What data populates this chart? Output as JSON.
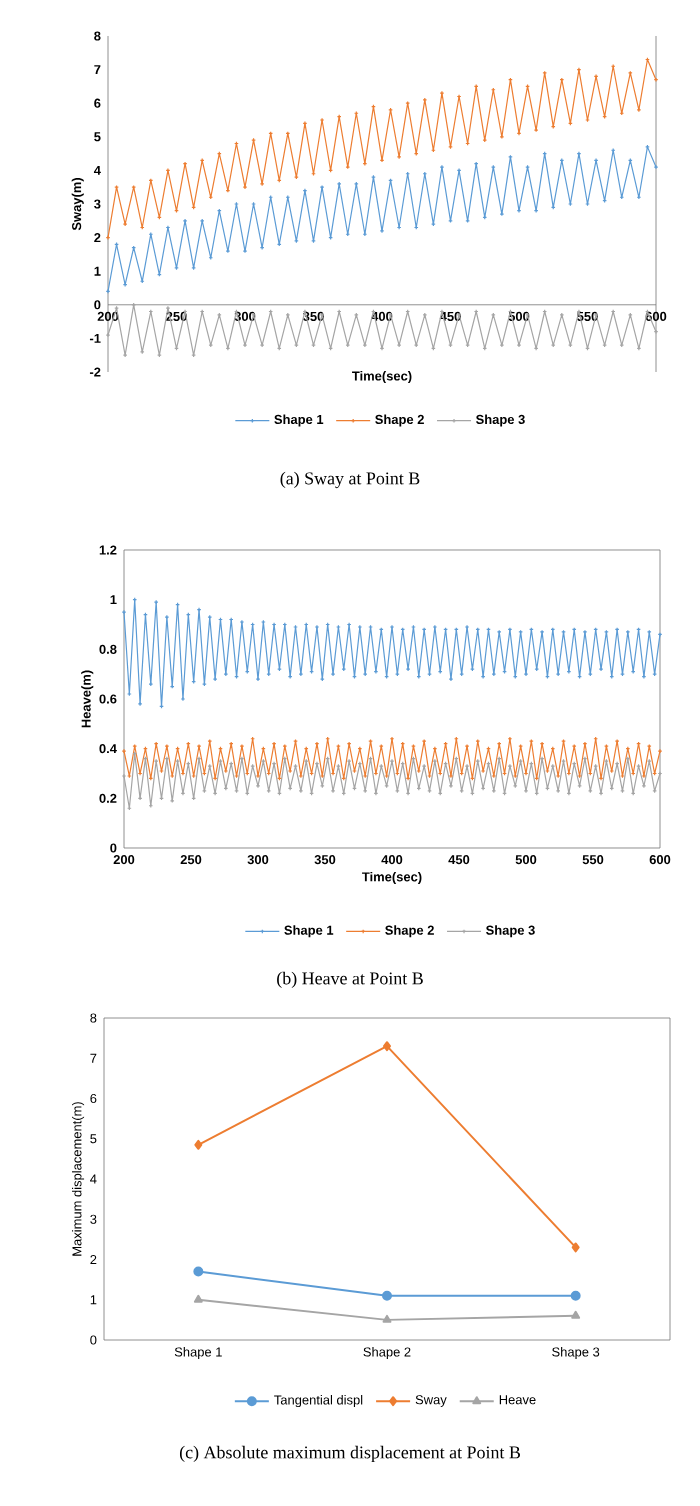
{
  "chart_data": [
    {
      "type": "line",
      "title": "(a) Sway at Point B",
      "xlabel": "Time(sec)",
      "ylabel": "Sway(m)",
      "legend": "bottom",
      "marker": "cross",
      "xlim": [
        200,
        600
      ],
      "xticks": [
        200,
        250,
        300,
        350,
        400,
        450,
        500,
        550,
        600
      ],
      "ylim": [
        -2,
        8
      ],
      "yticks": [
        -2,
        -1,
        0,
        1,
        2,
        3,
        4,
        5,
        6,
        7,
        8
      ],
      "x": [
        200,
        206.25,
        212.5,
        218.75,
        225,
        231.25,
        237.5,
        243.75,
        250,
        256.25,
        262.5,
        268.75,
        275,
        281.25,
        287.5,
        293.75,
        300,
        306.25,
        312.5,
        318.75,
        325,
        331.25,
        337.5,
        343.75,
        350,
        356.25,
        362.5,
        368.75,
        375,
        381.25,
        387.5,
        393.75,
        400,
        406.25,
        412.5,
        418.75,
        425,
        431.25,
        437.5,
        443.75,
        450,
        456.25,
        462.5,
        468.75,
        475,
        481.25,
        487.5,
        493.75,
        500,
        506.25,
        512.5,
        518.75,
        525,
        531.25,
        537.5,
        543.75,
        550,
        556.25,
        562.5,
        568.75,
        575,
        581.25,
        587.5,
        593.75,
        600
      ],
      "series": [
        {
          "name": "Shape 1",
          "color": "#5b9bd5",
          "values": [
            0.4,
            1.8,
            0.6,
            1.7,
            0.7,
            2.1,
            0.9,
            2.3,
            1.1,
            2.5,
            1.1,
            2.5,
            1.4,
            2.8,
            1.6,
            3.0,
            1.6,
            3.0,
            1.7,
            3.2,
            1.8,
            3.2,
            1.9,
            3.4,
            1.9,
            3.5,
            2.0,
            3.6,
            2.1,
            3.6,
            2.1,
            3.8,
            2.2,
            3.7,
            2.3,
            3.9,
            2.3,
            3.9,
            2.4,
            4.1,
            2.5,
            4.0,
            2.5,
            4.2,
            2.6,
            4.1,
            2.7,
            4.4,
            2.8,
            4.1,
            2.8,
            4.5,
            2.9,
            4.3,
            3.0,
            4.5,
            3.0,
            4.3,
            3.1,
            4.6,
            3.2,
            4.3,
            3.2,
            4.7,
            4.1
          ]
        },
        {
          "name": "Shape 2",
          "color": "#ed7d31",
          "values": [
            2.0,
            3.5,
            2.4,
            3.5,
            2.3,
            3.7,
            2.6,
            4.0,
            2.8,
            4.2,
            2.9,
            4.3,
            3.2,
            4.5,
            3.4,
            4.8,
            3.5,
            4.9,
            3.6,
            5.1,
            3.7,
            5.1,
            3.8,
            5.4,
            3.9,
            5.5,
            4.0,
            5.6,
            4.1,
            5.7,
            4.2,
            5.9,
            4.3,
            5.8,
            4.4,
            6.0,
            4.5,
            6.1,
            4.6,
            6.3,
            4.7,
            6.2,
            4.8,
            6.5,
            4.9,
            6.4,
            5.0,
            6.7,
            5.1,
            6.5,
            5.2,
            6.9,
            5.3,
            6.7,
            5.4,
            7.0,
            5.5,
            6.8,
            5.6,
            7.1,
            5.7,
            6.9,
            5.8,
            7.3,
            6.7
          ]
        },
        {
          "name": "Shape 3",
          "color": "#a5a5a5",
          "values": [
            -0.9,
            -0.1,
            -1.5,
            0.0,
            -1.4,
            -0.2,
            -1.5,
            -0.1,
            -1.3,
            -0.2,
            -1.5,
            -0.2,
            -1.2,
            -0.3,
            -1.3,
            -0.2,
            -1.2,
            -0.3,
            -1.2,
            -0.2,
            -1.3,
            -0.3,
            -1.2,
            -0.2,
            -1.2,
            -0.3,
            -1.3,
            -0.2,
            -1.2,
            -0.3,
            -1.2,
            -0.2,
            -1.3,
            -0.3,
            -1.2,
            -0.2,
            -1.2,
            -0.3,
            -1.3,
            -0.2,
            -1.2,
            -0.3,
            -1.2,
            -0.2,
            -1.3,
            -0.3,
            -1.2,
            -0.2,
            -1.2,
            -0.3,
            -1.3,
            -0.2,
            -1.2,
            -0.3,
            -1.2,
            -0.2,
            -1.3,
            -0.3,
            -1.2,
            -0.2,
            -1.2,
            -0.3,
            -1.3,
            -0.2,
            -0.8
          ]
        }
      ]
    },
    {
      "type": "line",
      "title": "(b) Heave at Point B",
      "xlabel": "Time(sec)",
      "ylabel": "Heave(m)",
      "legend": "bottom",
      "marker": "cross",
      "xlim": [
        200,
        600
      ],
      "xticks": [
        200,
        250,
        300,
        350,
        400,
        450,
        500,
        550,
        600
      ],
      "ylim": [
        0,
        1.2
      ],
      "yticks": [
        0,
        0.2,
        0.4,
        0.6,
        0.8,
        1,
        1.2
      ],
      "x": [
        200,
        204,
        208,
        212,
        216,
        220,
        224,
        228,
        232,
        236,
        240,
        244,
        248,
        252,
        256,
        260,
        264,
        268,
        272,
        276,
        280,
        284,
        288,
        292,
        296,
        300,
        304,
        308,
        312,
        316,
        320,
        324,
        328,
        332,
        336,
        340,
        344,
        348,
        352,
        356,
        360,
        364,
        368,
        372,
        376,
        380,
        384,
        388,
        392,
        396,
        400,
        404,
        408,
        412,
        416,
        420,
        424,
        428,
        432,
        436,
        440,
        444,
        448,
        452,
        456,
        460,
        464,
        468,
        472,
        476,
        480,
        484,
        488,
        492,
        496,
        500,
        504,
        508,
        512,
        516,
        520,
        524,
        528,
        532,
        536,
        540,
        544,
        548,
        552,
        556,
        560,
        564,
        568,
        572,
        576,
        580,
        584,
        588,
        592,
        596,
        600
      ],
      "series": [
        {
          "name": "Shape 1",
          "color": "#5b9bd5",
          "values": [
            0.95,
            0.62,
            1.0,
            0.58,
            0.94,
            0.66,
            0.99,
            0.57,
            0.93,
            0.65,
            0.98,
            0.6,
            0.94,
            0.67,
            0.96,
            0.66,
            0.93,
            0.68,
            0.92,
            0.7,
            0.92,
            0.69,
            0.91,
            0.71,
            0.9,
            0.68,
            0.91,
            0.7,
            0.9,
            0.72,
            0.9,
            0.69,
            0.89,
            0.7,
            0.9,
            0.71,
            0.89,
            0.68,
            0.9,
            0.7,
            0.89,
            0.72,
            0.9,
            0.69,
            0.89,
            0.7,
            0.89,
            0.71,
            0.88,
            0.69,
            0.89,
            0.7,
            0.88,
            0.72,
            0.89,
            0.69,
            0.88,
            0.7,
            0.89,
            0.71,
            0.88,
            0.68,
            0.88,
            0.7,
            0.89,
            0.72,
            0.88,
            0.69,
            0.88,
            0.7,
            0.87,
            0.71,
            0.88,
            0.69,
            0.87,
            0.7,
            0.88,
            0.72,
            0.87,
            0.69,
            0.88,
            0.7,
            0.87,
            0.71,
            0.88,
            0.69,
            0.87,
            0.7,
            0.88,
            0.72,
            0.87,
            0.69,
            0.88,
            0.7,
            0.87,
            0.71,
            0.88,
            0.69,
            0.87,
            0.7,
            0.86
          ]
        },
        {
          "name": "Shape 2",
          "color": "#ed7d31",
          "values": [
            0.39,
            0.29,
            0.41,
            0.3,
            0.4,
            0.28,
            0.42,
            0.31,
            0.41,
            0.29,
            0.4,
            0.3,
            0.42,
            0.29,
            0.41,
            0.3,
            0.43,
            0.28,
            0.4,
            0.31,
            0.42,
            0.29,
            0.41,
            0.3,
            0.44,
            0.29,
            0.4,
            0.3,
            0.42,
            0.28,
            0.41,
            0.31,
            0.43,
            0.29,
            0.4,
            0.3,
            0.42,
            0.29,
            0.44,
            0.3,
            0.41,
            0.28,
            0.42,
            0.31,
            0.4,
            0.29,
            0.43,
            0.3,
            0.41,
            0.29,
            0.44,
            0.3,
            0.42,
            0.28,
            0.41,
            0.31,
            0.43,
            0.29,
            0.4,
            0.3,
            0.42,
            0.29,
            0.44,
            0.3,
            0.41,
            0.28,
            0.43,
            0.31,
            0.4,
            0.29,
            0.42,
            0.3,
            0.44,
            0.29,
            0.41,
            0.3,
            0.43,
            0.28,
            0.42,
            0.31,
            0.4,
            0.29,
            0.43,
            0.3,
            0.41,
            0.29,
            0.42,
            0.3,
            0.44,
            0.28,
            0.41,
            0.31,
            0.43,
            0.29,
            0.4,
            0.3,
            0.42,
            0.29,
            0.41,
            0.3,
            0.39
          ]
        },
        {
          "name": "Shape 3",
          "color": "#a5a5a5",
          "values": [
            0.29,
            0.16,
            0.38,
            0.2,
            0.36,
            0.17,
            0.35,
            0.2,
            0.36,
            0.19,
            0.35,
            0.22,
            0.34,
            0.2,
            0.36,
            0.23,
            0.33,
            0.22,
            0.35,
            0.24,
            0.34,
            0.23,
            0.36,
            0.22,
            0.33,
            0.25,
            0.35,
            0.23,
            0.34,
            0.22,
            0.36,
            0.24,
            0.33,
            0.23,
            0.35,
            0.22,
            0.34,
            0.25,
            0.36,
            0.23,
            0.33,
            0.22,
            0.35,
            0.24,
            0.34,
            0.23,
            0.36,
            0.22,
            0.33,
            0.25,
            0.35,
            0.23,
            0.34,
            0.22,
            0.36,
            0.24,
            0.33,
            0.23,
            0.35,
            0.22,
            0.34,
            0.25,
            0.36,
            0.23,
            0.33,
            0.22,
            0.35,
            0.24,
            0.34,
            0.23,
            0.36,
            0.22,
            0.33,
            0.25,
            0.35,
            0.23,
            0.34,
            0.22,
            0.36,
            0.24,
            0.33,
            0.23,
            0.35,
            0.22,
            0.34,
            0.25,
            0.36,
            0.23,
            0.33,
            0.22,
            0.35,
            0.24,
            0.34,
            0.23,
            0.36,
            0.22,
            0.33,
            0.25,
            0.35,
            0.23,
            0.3
          ]
        }
      ]
    },
    {
      "type": "line",
      "title": "(c) Absolute maximum displacement at Point B",
      "ylabel": "Maximum displacement(m)",
      "legend": "bottom",
      "categories": [
        "Shape 1",
        "Shape 2",
        "Shape 3"
      ],
      "ylim": [
        0,
        8
      ],
      "yticks": [
        0,
        1,
        2,
        3,
        4,
        5,
        6,
        7,
        8
      ],
      "series": [
        {
          "name": "Tangential displ",
          "color": "#5b9bd5",
          "marker": "circle",
          "values": [
            1.7,
            1.1,
            1.1
          ]
        },
        {
          "name": "Sway",
          "color": "#ed7d31",
          "marker": "diamond",
          "values": [
            4.85,
            7.3,
            2.3
          ]
        },
        {
          "name": "Heave",
          "color": "#a5a5a5",
          "marker": "triangle",
          "values": [
            1.0,
            0.5,
            0.6
          ]
        }
      ]
    }
  ]
}
